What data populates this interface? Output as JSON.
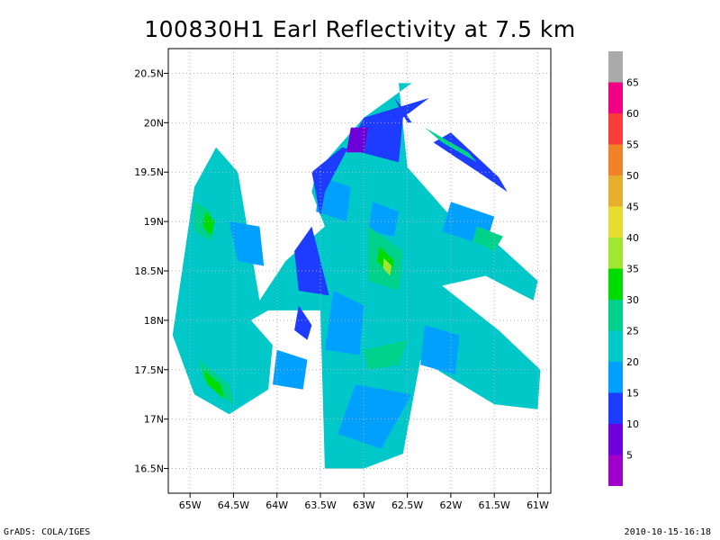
{
  "chart_data": {
    "type": "heatmap",
    "title": "100830H1 Earl Reflectivity at 7.5 km",
    "x_ticks": [
      {
        "value": -65,
        "label": "65W"
      },
      {
        "value": -64.5,
        "label": "64.5W"
      },
      {
        "value": -64,
        "label": "64W"
      },
      {
        "value": -63.5,
        "label": "63.5W"
      },
      {
        "value": -63,
        "label": "63W"
      },
      {
        "value": -62.5,
        "label": "62.5W"
      },
      {
        "value": -62,
        "label": "62W"
      },
      {
        "value": -61.5,
        "label": "61.5W"
      },
      {
        "value": -61,
        "label": "61W"
      }
    ],
    "y_ticks": [
      {
        "value": 16.5,
        "label": "16.5N"
      },
      {
        "value": 17,
        "label": "17N"
      },
      {
        "value": 17.5,
        "label": "17.5N"
      },
      {
        "value": 18,
        "label": "18N"
      },
      {
        "value": 18.5,
        "label": "18.5N"
      },
      {
        "value": 19,
        "label": "19N"
      },
      {
        "value": 19.5,
        "label": "19.5N"
      },
      {
        "value": 20,
        "label": "20N"
      },
      {
        "value": 20.5,
        "label": "20.5N"
      }
    ],
    "xlim": [
      -65.25,
      -60.85
    ],
    "ylim": [
      16.25,
      20.75
    ],
    "grid": true,
    "colorbar": {
      "labels": [
        "5",
        "10",
        "15",
        "20",
        "25",
        "30",
        "35",
        "40",
        "45",
        "50",
        "55",
        "60",
        "65"
      ],
      "colors": [
        "#a000c8",
        "#6e00dc",
        "#1e3cff",
        "#00a0ff",
        "#00c8c8",
        "#00d28c",
        "#00dc00",
        "#a0e632",
        "#e6dc32",
        "#e6af2d",
        "#f08228",
        "#fa3c3c",
        "#f00082",
        "#aaaaaa"
      ]
    },
    "field": {
      "background_dbz": 23,
      "areas": [
        {
          "dbz": 23,
          "lon": [
            -65.2,
            -64.95,
            -64.55,
            -64.1,
            -64.05,
            -64.3,
            -64.1,
            -63.5,
            -63.45,
            -63.0,
            -62.55,
            -62.35,
            -61.5,
            -61.0,
            -60.97,
            -61.45,
            -62.1,
            -61.6,
            -61.05,
            -61.0,
            -61.5,
            -62.05,
            -62.5,
            -62.6,
            -62.45,
            -63.0,
            -63.55,
            -63.6,
            -63.45,
            -63.9,
            -64.2,
            -64.45,
            -64.7,
            -64.95
          ],
          "lat": [
            17.85,
            17.25,
            17.05,
            17.3,
            17.75,
            18.0,
            18.1,
            18.1,
            16.5,
            16.5,
            16.65,
            17.6,
            17.15,
            17.1,
            17.5,
            17.9,
            18.35,
            18.45,
            18.2,
            18.4,
            18.8,
            19.1,
            19.55,
            20.4,
            20.4,
            20.05,
            19.5,
            19.3,
            18.95,
            18.6,
            18.2,
            19.5,
            19.75,
            19.35
          ]
        },
        {
          "dbz": 18,
          "lon": [
            -63.1,
            -62.45,
            -62.8,
            -63.3
          ],
          "lat": [
            17.35,
            17.25,
            16.7,
            16.85
          ]
        },
        {
          "dbz": 18,
          "lon": [
            -63.35,
            -63.0,
            -63.05,
            -63.45
          ],
          "lat": [
            18.3,
            18.15,
            17.65,
            17.7
          ]
        },
        {
          "dbz": 18,
          "lon": [
            -62.3,
            -61.9,
            -61.95,
            -62.35
          ],
          "lat": [
            17.95,
            17.85,
            17.45,
            17.55
          ]
        },
        {
          "dbz": 18,
          "lon": [
            -62.0,
            -61.5,
            -61.6,
            -62.1
          ],
          "lat": [
            19.2,
            19.05,
            18.75,
            18.9
          ]
        },
        {
          "dbz": 18,
          "lon": [
            -64.55,
            -64.2,
            -64.15,
            -64.45
          ],
          "lat": [
            19.0,
            18.95,
            18.55,
            18.6
          ]
        },
        {
          "dbz": 18,
          "lon": [
            -64.0,
            -63.65,
            -63.7,
            -64.05
          ],
          "lat": [
            17.7,
            17.6,
            17.3,
            17.35
          ]
        },
        {
          "dbz": 18,
          "lon": [
            -62.9,
            -62.6,
            -62.65,
            -62.95
          ],
          "lat": [
            19.2,
            19.1,
            18.85,
            18.9
          ]
        },
        {
          "dbz": 18,
          "lon": [
            -63.5,
            -63.15,
            -63.2,
            -63.55
          ],
          "lat": [
            19.45,
            19.35,
            19.0,
            19.1
          ]
        },
        {
          "dbz": 13,
          "lon": [
            -63.0,
            -62.25,
            -62.55,
            -62.6,
            -63.25,
            -63.6,
            -63.5,
            -63.45
          ],
          "lat": [
            20.05,
            20.25,
            20.05,
            19.6,
            19.75,
            19.5,
            19.05,
            19.3
          ]
        },
        {
          "dbz": 13,
          "lon": [
            -62.2,
            -61.6,
            -61.35,
            -61.45,
            -62.0
          ],
          "lat": [
            19.8,
            19.45,
            19.3,
            19.45,
            19.9
          ]
        },
        {
          "dbz": 13,
          "lon": [
            -63.4,
            -63.75,
            -63.8,
            -63.6
          ],
          "lat": [
            18.25,
            18.3,
            18.7,
            18.95
          ]
        },
        {
          "dbz": 13,
          "lon": [
            -63.75,
            -63.6,
            -63.65,
            -63.8
          ],
          "lat": [
            18.15,
            17.95,
            17.8,
            17.9
          ]
        },
        {
          "dbz": 13,
          "lon": [
            -62.6,
            -62.45,
            -62.5,
            -62.65
          ],
          "lat": [
            20.2,
            20.0,
            20.0,
            20.25
          ]
        },
        {
          "dbz": 8,
          "lon": [
            -63.15,
            -62.95,
            -63.0,
            -63.2
          ],
          "lat": [
            19.95,
            19.95,
            19.7,
            19.7
          ]
        },
        {
          "dbz": 27,
          "lon": [
            -62.95,
            -62.55,
            -62.6,
            -62.95
          ],
          "lat": [
            18.95,
            18.7,
            18.3,
            18.4
          ]
        },
        {
          "dbz": 27,
          "lon": [
            -64.95,
            -64.75,
            -64.75,
            -64.95
          ],
          "lat": [
            19.2,
            19.1,
            18.8,
            18.9
          ]
        },
        {
          "dbz": 27,
          "lon": [
            -64.9,
            -64.55,
            -64.5,
            -64.85
          ],
          "lat": [
            17.6,
            17.35,
            17.15,
            17.4
          ]
        },
        {
          "dbz": 27,
          "lon": [
            -62.3,
            -61.8,
            -61.7,
            -62.1
          ],
          "lat": [
            19.95,
            19.7,
            19.6,
            19.8
          ]
        },
        {
          "dbz": 27,
          "lon": [
            -61.7,
            -61.4,
            -61.5,
            -61.75
          ],
          "lat": [
            18.95,
            18.85,
            18.7,
            18.8
          ]
        },
        {
          "dbz": 27,
          "lon": [
            -63.0,
            -62.5,
            -62.6,
            -62.95
          ],
          "lat": [
            17.7,
            17.8,
            17.55,
            17.5
          ]
        },
        {
          "dbz": 32,
          "lon": [
            -62.82,
            -62.65,
            -62.7,
            -62.85
          ],
          "lat": [
            18.75,
            18.6,
            18.45,
            18.6
          ]
        },
        {
          "dbz": 32,
          "lon": [
            -64.82,
            -64.72,
            -64.75,
            -64.85
          ],
          "lat": [
            19.1,
            19.0,
            18.85,
            18.95
          ]
        },
        {
          "dbz": 32,
          "lon": [
            -64.85,
            -64.65,
            -64.6,
            -64.8
          ],
          "lat": [
            17.5,
            17.35,
            17.2,
            17.35
          ]
        },
        {
          "dbz": 38,
          "lon": [
            -62.77,
            -62.68,
            -62.7,
            -62.78
          ],
          "lat": [
            18.63,
            18.55,
            18.45,
            18.53
          ]
        }
      ]
    }
  },
  "footer": {
    "left": "GrADS: COLA/IGES",
    "right": "2010-10-15-16:18"
  }
}
